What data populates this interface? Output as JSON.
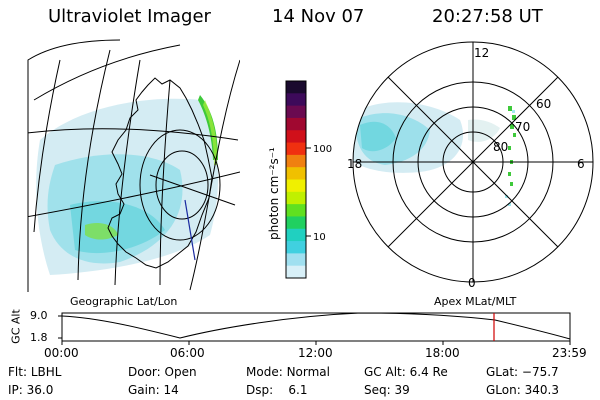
{
  "header": {
    "instrument": "Ultraviolet Imager",
    "date": "14 Nov 07",
    "time": "20:27:58 UT"
  },
  "colorbar": {
    "unit_label": "photon cm⁻²s⁻¹",
    "ticks": [
      "100",
      "10"
    ],
    "colors": [
      "#1a0a2e",
      "#3d0a5a",
      "#6a0a50",
      "#a00830",
      "#d0101a",
      "#f03010",
      "#f08010",
      "#f0c000",
      "#f0f000",
      "#c0f000",
      "#60e020",
      "#20d060",
      "#20d0c0",
      "#40d0e0",
      "#a0e0f0",
      "#d8f0f8"
    ]
  },
  "left_panel": {
    "label": "Geographic Lat/Lon"
  },
  "right_panel": {
    "label": "Apex MLat/MLT",
    "mlt_labels": {
      "top": "12",
      "left": "18",
      "right": "6",
      "bottom": "0"
    },
    "lat_labels": [
      "60",
      "70",
      "80"
    ]
  },
  "altitude_plot": {
    "ylabel": "GC Alt",
    "yticks": [
      "9.0",
      "1.8"
    ],
    "xticks": [
      "00:00",
      "06:00",
      "12:00",
      "18:00",
      "23:59"
    ],
    "marker_color": "#d00000"
  },
  "footer": {
    "filter_label": "Flt:",
    "filter_value": "LBHL",
    "ip_label": "IP:",
    "ip_value": "36.0",
    "door_label": "Door:",
    "door_value": "Open",
    "gain_label": "Gain:",
    "gain_value": "14",
    "mode_label": "Mode:",
    "mode_value": "Normal",
    "dsp_label": "Dsp:",
    "dsp_value": "6.1",
    "gcalt_label": "GC Alt:",
    "gcalt_value": "6.4 Re",
    "seq_label": "Seq:",
    "seq_value": "39",
    "glat_label": "GLat:",
    "glat_value": "−75.7",
    "glon_label": "GLon:",
    "glon_value": "340.3"
  }
}
